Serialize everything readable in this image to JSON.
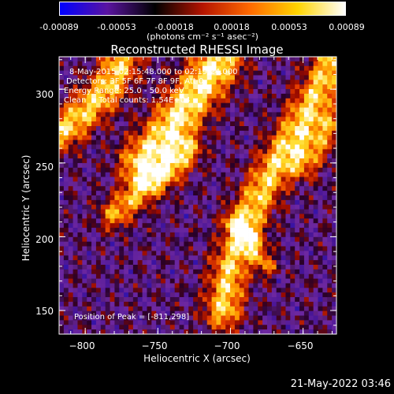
{
  "colorbar": {
    "ticks": [
      "-0.00089",
      "-0.00053",
      "-0.00018",
      "0.00018",
      "0.00053",
      "0.00089"
    ],
    "unit": "(photons cm⁻² s⁻¹ asec⁻²)",
    "colors": [
      "#0000ff",
      "#5a14a0",
      "#000000",
      "#b41400",
      "#ff6a00",
      "#ffd400",
      "#ffffff"
    ]
  },
  "chart_data": {
    "type": "heatmap",
    "title": "Reconstructed RHESSI Image",
    "xlabel": "Heliocentric X (arcsec)",
    "ylabel": "Heliocentric Y (arcsec)",
    "xlim": [
      -818,
      -627
    ],
    "ylim": [
      134,
      322
    ],
    "xticks": [
      -800,
      -750,
      -700,
      -650
    ],
    "yticks": [
      150,
      200,
      250,
      300
    ],
    "xtick_labels": [
      "−800",
      "−750",
      "−700",
      "−650"
    ],
    "ytick_labels": [
      "150",
      "200",
      "250",
      "300"
    ],
    "value_range": [
      -0.00089,
      0.00089
    ],
    "peak": [
      -811,
      298
    ],
    "annotations": [
      "8-May-2015 02:15:48.000 to 02:19:24.000",
      "Detectors: 3F 5F 6F 7F 8F 9F, Att 0",
      "Energy Range: 25.0 - 50.0 keV",
      "Clean     Total counts: 1.54E+04",
      "Position of Peak = [-811,298]"
    ]
  },
  "footer": {
    "timestamp": "21-May-2022 03:46"
  }
}
